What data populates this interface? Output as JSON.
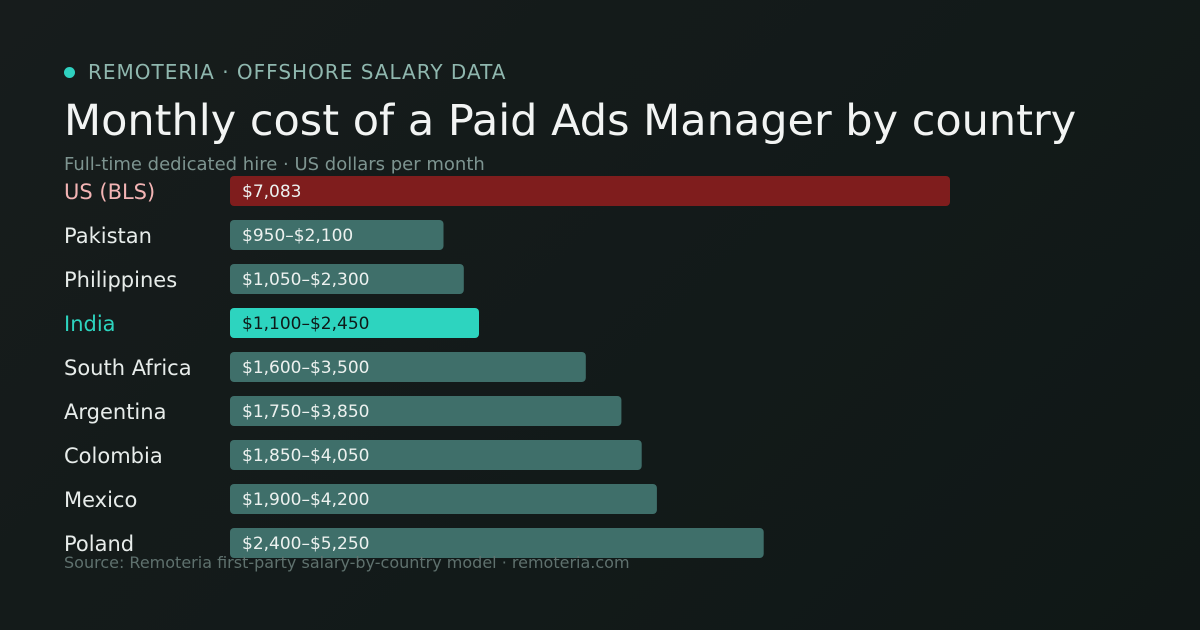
{
  "header": {
    "brand": "REMOTERIA · OFFSHORE SALARY DATA",
    "title": "Monthly cost of a Paid Ads Manager by country",
    "subtitle": "Full-time dedicated hire · US dollars per month",
    "source": "Source: Remoteria first-party salary-by-country model · remoteria.com"
  },
  "colors": {
    "accent": "#2fd1c0",
    "baseline_bar": "#7f1d1d",
    "default_bar": "#3f6f6a",
    "highlight_bar": "#2dd4bf",
    "baseline_label": "#f3b4b4",
    "highlight_label": "#2dd4bf"
  },
  "chart_data": {
    "type": "bar",
    "orientation": "horizontal",
    "categories": [
      "US (BLS)",
      "Pakistan",
      "Philippines",
      "India",
      "South Africa",
      "Argentina",
      "Colombia",
      "Mexico",
      "Poland"
    ],
    "low": [
      7083,
      950,
      1050,
      1100,
      1600,
      1750,
      1850,
      1900,
      2400
    ],
    "high": [
      7083,
      2100,
      2300,
      2450,
      3500,
      3850,
      4050,
      4200,
      5250
    ],
    "value_labels": [
      "$7,083",
      "$950–$2,100",
      "$1,050–$2,300",
      "$1,100–$2,450",
      "$1,600–$3,500",
      "$1,750–$3,850",
      "$1,850–$4,050",
      "$1,900–$4,200",
      "$2,400–$5,250"
    ],
    "highlight": {
      "baseline": "US (BLS)",
      "focus": "India"
    },
    "unit": "US dollars per month",
    "xlim": [
      0,
      7083
    ],
    "grid": false
  }
}
